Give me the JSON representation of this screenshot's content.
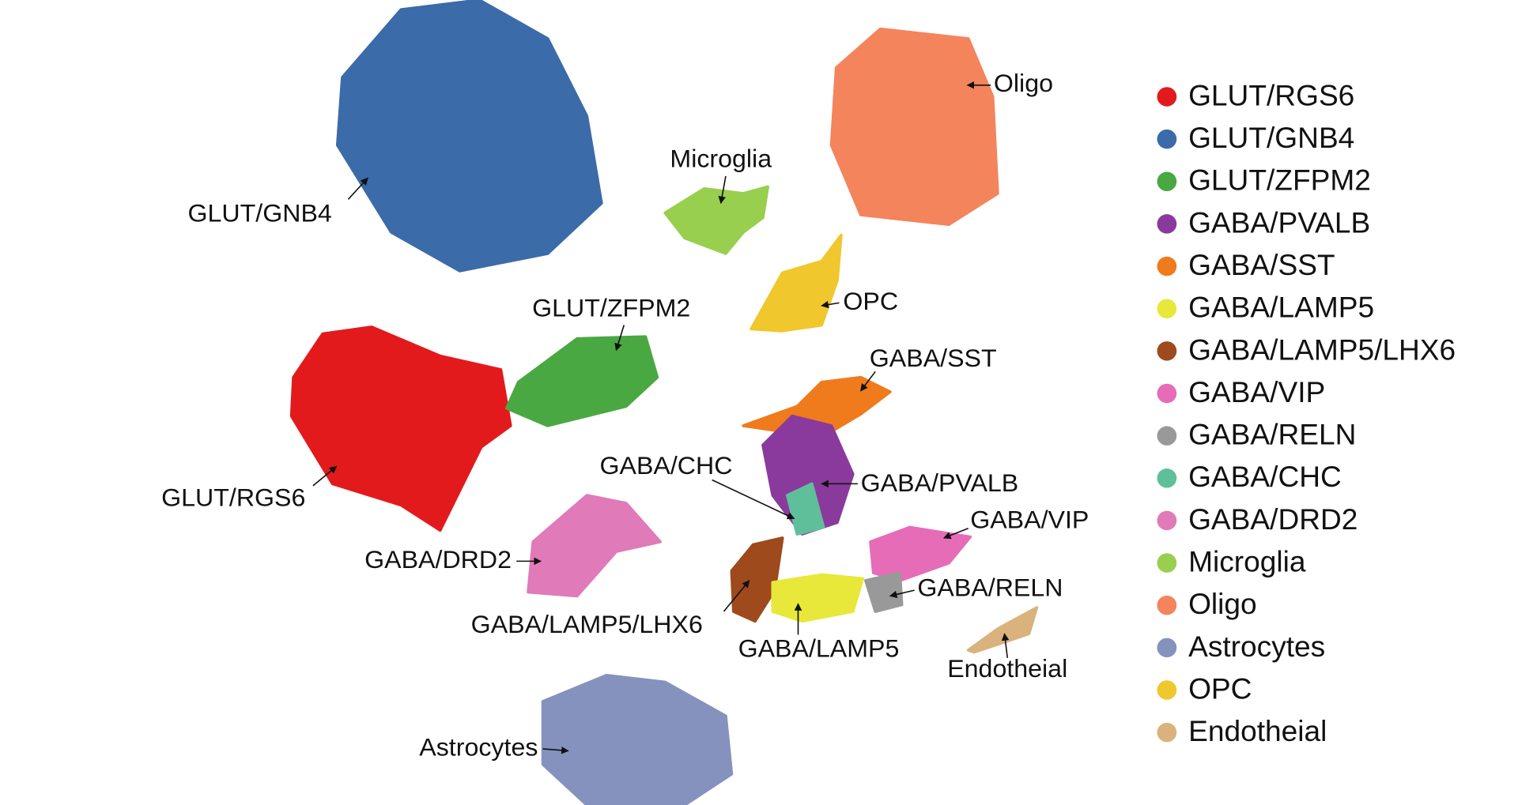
{
  "legend": {
    "items": [
      {
        "label": "GLUT/RGS6",
        "color": "#e31a1c"
      },
      {
        "label": "GLUT/GNB4",
        "color": "#3b6ba8"
      },
      {
        "label": "GLUT/ZFPM2",
        "color": "#4aa843"
      },
      {
        "label": "GABA/PVALB",
        "color": "#8a3a9c"
      },
      {
        "label": "GABA/SST",
        "color": "#f07b1d"
      },
      {
        "label": "GABA/LAMP5",
        "color": "#e8e83a"
      },
      {
        "label": "GABA/LAMP5/LHX6",
        "color": "#9e4a1c"
      },
      {
        "label": "GABA/VIP",
        "color": "#e66cb8"
      },
      {
        "label": "GABA/RELN",
        "color": "#999999"
      },
      {
        "label": "GABA/CHC",
        "color": "#5fbf9a"
      },
      {
        "label": "GABA/DRD2",
        "color": "#e07ab8"
      },
      {
        "label": "Microglia",
        "color": "#98cf4e"
      },
      {
        "label": "Oligo",
        "color": "#f4845c"
      },
      {
        "label": "Astrocytes",
        "color": "#8592be"
      },
      {
        "label": "OPC",
        "color": "#f0c72c"
      },
      {
        "label": "Endotheial",
        "color": "#d9b27e"
      }
    ]
  },
  "annotations": [
    {
      "label": "Oligo"
    },
    {
      "label": "Microglia"
    },
    {
      "label": "OPC"
    },
    {
      "label": "GLUT/ZFPM2"
    },
    {
      "label": "GABA/SST"
    },
    {
      "label": "GLUT/GNB4"
    },
    {
      "label": "GLUT/RGS6"
    },
    {
      "label": "GABA/CHC"
    },
    {
      "label": "GABA/PVALB"
    },
    {
      "label": "GABA/VIP"
    },
    {
      "label": "GABA/DRD2"
    },
    {
      "label": "GABA/RELN"
    },
    {
      "label": "GABA/LAMP5/LHX6"
    },
    {
      "label": "GABA/LAMP5"
    },
    {
      "label": "Endotheial"
    },
    {
      "label": "Astrocytes"
    }
  ]
}
